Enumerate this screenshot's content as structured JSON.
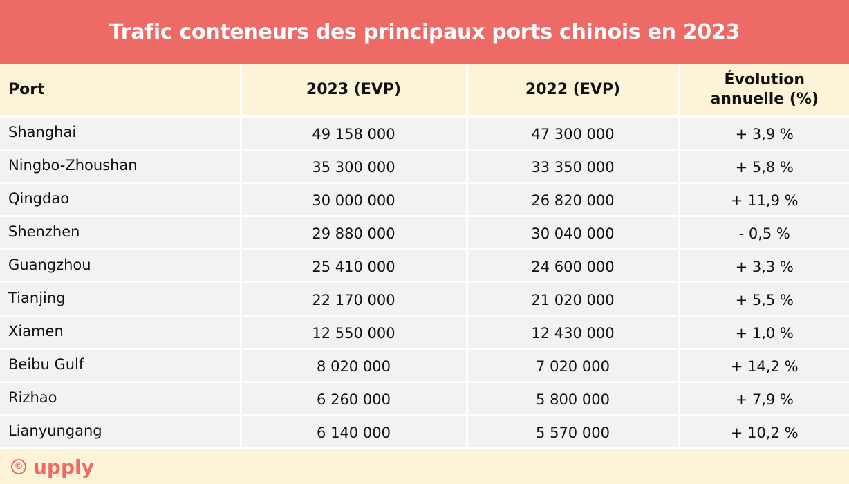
{
  "title": "Trafic conteneurs des principaux ports chinois en 2023",
  "table": {
    "headers": {
      "port": "Port",
      "y2023": "2023 (EVP)",
      "y2022": "2022 (EVP)",
      "evolution_line1": "Évolution",
      "evolution_line2": "annuelle (%)"
    },
    "rows": [
      {
        "port": "Shanghai",
        "y2023": "49 158 000",
        "y2022": "47 300 000",
        "evolution": "+ 3,9 %"
      },
      {
        "port": "Ningbo-Zhoushan",
        "y2023": "35 300 000",
        "y2022": "33 350 000",
        "evolution": "+ 5,8 %"
      },
      {
        "port": "Qingdao",
        "y2023": "30 000 000",
        "y2022": "26 820 000",
        "evolution": "+ 11,9 %"
      },
      {
        "port": "Shenzhen",
        "y2023": "29 880 000",
        "y2022": "30 040 000",
        "evolution": "- 0,5 %"
      },
      {
        "port": "Guangzhou",
        "y2023": "25 410 000",
        "y2022": "24 600 000",
        "evolution": "+ 3,3 %"
      },
      {
        "port": "Tianjing",
        "y2023": "22 170 000",
        "y2022": "21 020 000",
        "evolution": "+ 5,5 %"
      },
      {
        "port": "Xiamen",
        "y2023": "12 550 000",
        "y2022": "12 430 000",
        "evolution": "+ 1,0 %"
      },
      {
        "port": "Beibu Gulf",
        "y2023": "8 020 000",
        "y2022": "7 020 000",
        "evolution": "+ 14,2 %"
      },
      {
        "port": "Rizhao",
        "y2023": "6 260 000",
        "y2022": "5 800 000",
        "evolution": "+ 7,9 %"
      },
      {
        "port": "Lianyungang",
        "y2023": "6 140 000",
        "y2022": "5 570 000",
        "evolution": "+ 10,2 %"
      }
    ]
  },
  "footer": {
    "copyright_symbol": "©",
    "brand": "upply"
  },
  "colors": {
    "accent": "#ee6a66",
    "header_bg": "#fdf3d6",
    "row_bg": "#f2f2f2"
  }
}
